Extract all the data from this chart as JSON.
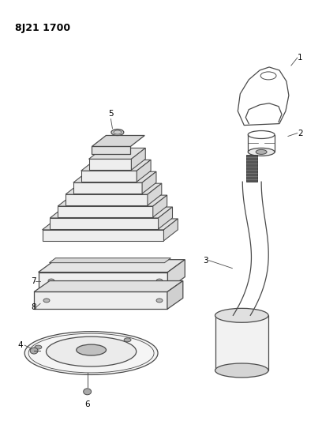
{
  "title": "8J21 1700",
  "background_color": "#ffffff",
  "line_color": "#4a4a4a",
  "fig_width": 4.08,
  "fig_height": 5.33,
  "dpi": 100
}
